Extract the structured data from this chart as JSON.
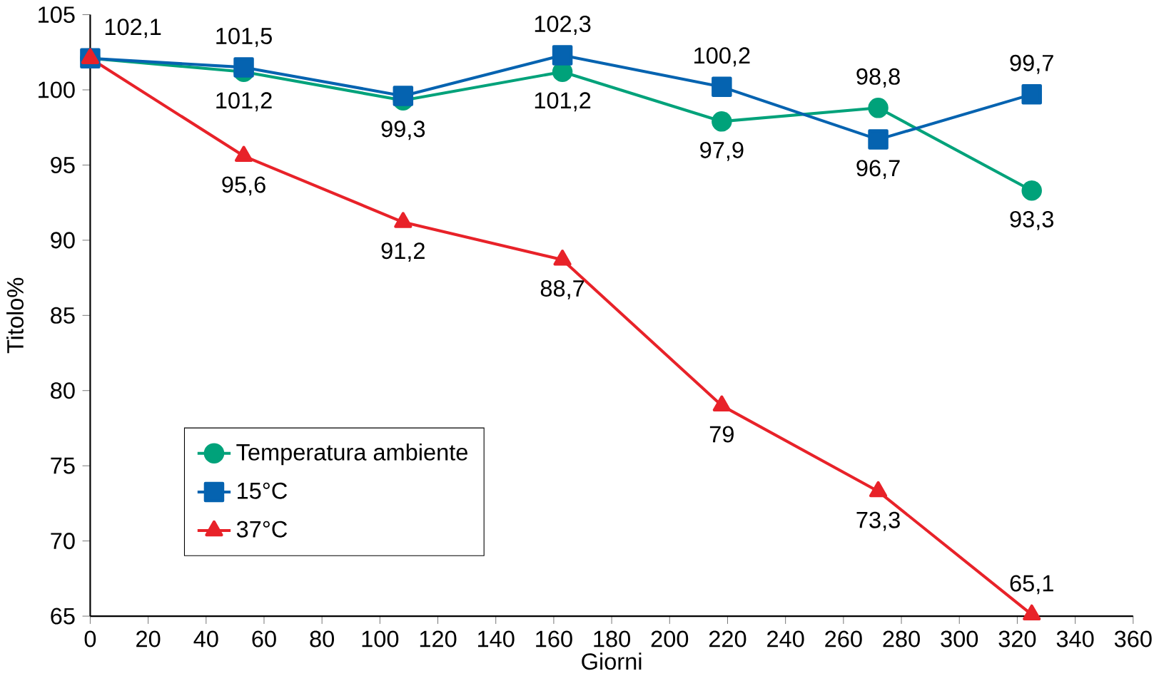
{
  "chart_data": {
    "type": "line",
    "xlabel": "Giorni",
    "ylabel": "Titolo%",
    "x": [
      0,
      53,
      108,
      163,
      218,
      272,
      325
    ],
    "xlim": [
      0,
      360
    ],
    "xticks": [
      0,
      20,
      40,
      60,
      80,
      100,
      120,
      140,
      160,
      180,
      200,
      220,
      240,
      260,
      280,
      300,
      320,
      340,
      360
    ],
    "ylim": [
      65,
      105
    ],
    "yticks": [
      65,
      70,
      75,
      80,
      85,
      90,
      95,
      100,
      105
    ],
    "grid": false,
    "legend": "bottom left",
    "series": [
      {
        "name": "Temperatura ambiente",
        "color": "#00a27a",
        "marker": "circle",
        "values": [
          102.1,
          101.2,
          99.3,
          101.2,
          97.9,
          98.8,
          93.3
        ],
        "value_labels": [
          "102,1",
          "101,2",
          "99,3",
          "101,2",
          "97,9",
          "98,8",
          "93,3"
        ]
      },
      {
        "name": "15°C",
        "color": "#0563b0",
        "marker": "square",
        "values": [
          102.1,
          101.5,
          99.6,
          102.3,
          100.2,
          96.7,
          99.7
        ],
        "value_labels": [
          null,
          "101,5",
          null,
          "102,3",
          "100,2",
          "96,7",
          "99,7"
        ]
      },
      {
        "name": "37°C",
        "color": "#e82229",
        "marker": "triangle",
        "values": [
          102.1,
          95.6,
          91.2,
          88.7,
          79,
          73.3,
          65.1
        ],
        "value_labels": [
          null,
          "95,6",
          "91,2",
          "88,7",
          "79",
          "73,3",
          "65,1"
        ]
      }
    ]
  }
}
